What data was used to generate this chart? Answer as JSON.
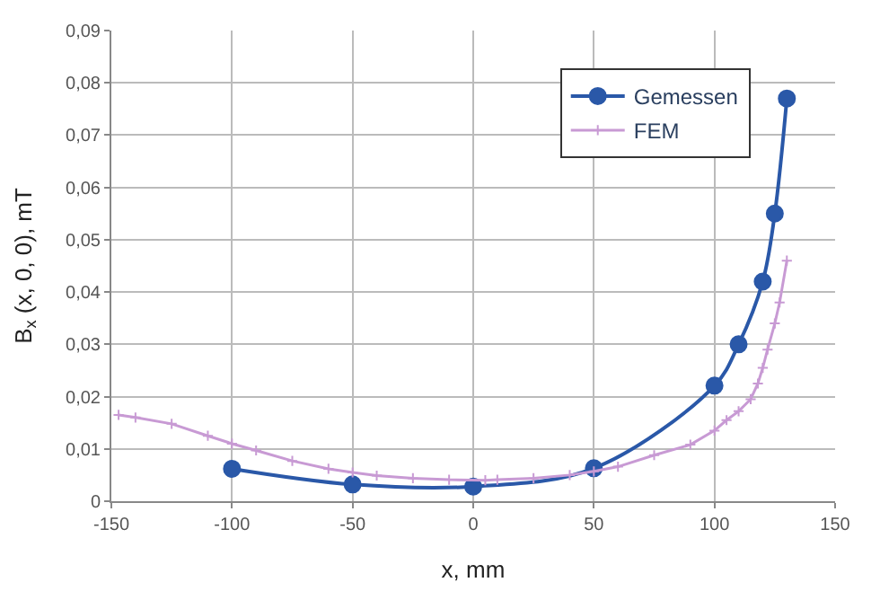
{
  "chart_data": {
    "type": "line",
    "xlabel": "x, mm",
    "ylabel": "B$_{x}$ (x, 0, 0), mT",
    "xlim": [
      -150,
      150
    ],
    "xticks": [
      -150,
      -100,
      -50,
      0,
      50,
      100,
      150
    ],
    "ylim": [
      0,
      0.09
    ],
    "yticks": [
      0,
      {
        "value": 0.01,
        "label": "0,01"
      },
      {
        "value": 0.02,
        "label": "0,02"
      },
      {
        "value": 0.03,
        "label": "0,03"
      },
      {
        "value": 0.04,
        "label": "0,04"
      },
      {
        "value": 0.05,
        "label": "0,05"
      },
      {
        "value": 0.06,
        "label": "0,06"
      },
      {
        "value": 0.07,
        "label": "0,07"
      },
      {
        "value": 0.08,
        "label": "0,08"
      },
      {
        "value": 0.09,
        "label": "0,09"
      }
    ],
    "grid": true,
    "legend": "top right",
    "series": [
      {
        "name": "Gemessen",
        "color": "#2a58a8",
        "marker": "circle",
        "x": [
          -100,
          -50,
          0,
          50,
          100,
          110,
          120,
          125,
          130
        ],
        "values": [
          0.0062,
          0.0032,
          0.0028,
          0.0063,
          0.0221,
          0.03,
          0.042,
          0.055,
          0.077
        ]
      },
      {
        "name": "FEM",
        "color": "#c89ad4",
        "marker": "cross",
        "x": [
          -147,
          -140,
          -125,
          -110,
          -100,
          -90,
          -75,
          -60,
          -50,
          -40,
          -25,
          -10,
          5,
          10,
          25,
          40,
          50,
          60,
          75,
          90,
          100,
          105,
          110,
          115,
          118,
          120,
          122,
          125,
          127,
          130
        ],
        "values": [
          0.0165,
          0.016,
          0.0148,
          0.0125,
          0.011,
          0.0097,
          0.0077,
          0.0062,
          0.0055,
          0.0049,
          0.0044,
          0.0041,
          0.004,
          0.0041,
          0.0044,
          0.005,
          0.0057,
          0.0066,
          0.0088,
          0.0108,
          0.0135,
          0.0155,
          0.0172,
          0.0195,
          0.0225,
          0.0255,
          0.029,
          0.034,
          0.038,
          0.046
        ]
      }
    ]
  }
}
